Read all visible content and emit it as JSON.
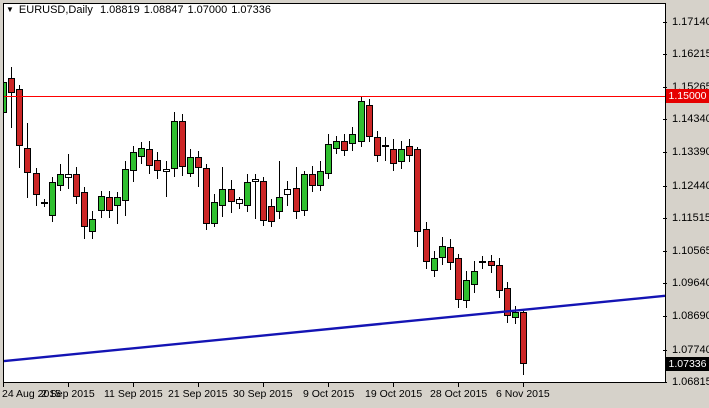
{
  "window": {
    "background_color": "#d6d2ca",
    "plot_background": "#ffffff"
  },
  "header": {
    "dropdown_icon": "▼",
    "symbol": "EURUSD,Daily",
    "open": "1.08819",
    "high": "1.08847",
    "low": "1.07000",
    "close": "1.07336"
  },
  "y_axis": {
    "labels": [
      "1.17140",
      "1.16215",
      "1.15265",
      "1.14340",
      "1.13390",
      "1.12440",
      "1.11515",
      "1.10565",
      "1.09640",
      "1.08690",
      "1.07740",
      "1.06815"
    ],
    "values": [
      1.1714,
      1.16215,
      1.15265,
      1.1434,
      1.1339,
      1.1244,
      1.11515,
      1.10565,
      1.0964,
      1.0869,
      1.0774,
      1.06815
    ],
    "hline_price_label": "1.15000",
    "current_price_label": "1.07336"
  },
  "x_axis": {
    "labels": [
      "24 Aug 2015",
      "2 Sep 2015",
      "11 Sep 2015",
      "21 Sep 2015",
      "30 Sep 2015",
      "9 Oct 2015",
      "19 Oct 2015",
      "28 Oct 2015",
      "6 Nov 2015"
    ],
    "tick_bar_indices": [
      0,
      8,
      16,
      24,
      32,
      40,
      48,
      56,
      64
    ]
  },
  "chart_data": {
    "type": "candlestick",
    "title": "EURUSD,Daily",
    "ylim": [
      1.06815,
      1.1714
    ],
    "grid": false,
    "colors": {
      "bull_fill": "#2fbf2f",
      "bear_fill": "#cc2626",
      "doji_fill": "#ffffff",
      "outline": "#000000",
      "hline": "#ff0000",
      "hline_label_bg": "#e60000",
      "current_price_label_bg": "#000000",
      "trendline": "#1414b4"
    },
    "hline": {
      "price": 1.15,
      "label": "1.15000"
    },
    "current_price": {
      "price": 1.07336,
      "label": "1.07336"
    },
    "trendline": {
      "price_left": 1.0741,
      "price_right": 1.0928
    },
    "candles": [
      {
        "o": 1.1451,
        "h": 1.1707,
        "l": 1.1422,
        "c": 1.1542,
        "color": "bull"
      },
      {
        "o": 1.1551,
        "h": 1.1585,
        "l": 1.1408,
        "c": 1.1508,
        "color": "bear"
      },
      {
        "o": 1.1522,
        "h": 1.1531,
        "l": 1.1294,
        "c": 1.1357,
        "color": "bear"
      },
      {
        "o": 1.1351,
        "h": 1.1422,
        "l": 1.1209,
        "c": 1.128,
        "color": "bear"
      },
      {
        "o": 1.128,
        "h": 1.1294,
        "l": 1.1186,
        "c": 1.1217,
        "color": "bear"
      },
      {
        "o": 1.1196,
        "h": 1.1206,
        "l": 1.1182,
        "c": 1.1191,
        "color": "doji"
      },
      {
        "o": 1.1157,
        "h": 1.1268,
        "l": 1.114,
        "c": 1.1254,
        "color": "bull"
      },
      {
        "o": 1.1243,
        "h": 1.1306,
        "l": 1.1229,
        "c": 1.1277,
        "color": "bull"
      },
      {
        "o": 1.1277,
        "h": 1.1334,
        "l": 1.1234,
        "c": 1.1266,
        "color": "doji"
      },
      {
        "o": 1.1277,
        "h": 1.1297,
        "l": 1.1192,
        "c": 1.1212,
        "color": "bear"
      },
      {
        "o": 1.1226,
        "h": 1.124,
        "l": 1.1092,
        "c": 1.1126,
        "color": "bear"
      },
      {
        "o": 1.1112,
        "h": 1.1172,
        "l": 1.1092,
        "c": 1.1149,
        "color": "bull"
      },
      {
        "o": 1.1172,
        "h": 1.1229,
        "l": 1.1152,
        "c": 1.1214,
        "color": "bull"
      },
      {
        "o": 1.1211,
        "h": 1.1229,
        "l": 1.1152,
        "c": 1.1172,
        "color": "bear"
      },
      {
        "o": 1.1186,
        "h": 1.1226,
        "l": 1.1134,
        "c": 1.1212,
        "color": "bull"
      },
      {
        "o": 1.12,
        "h": 1.1314,
        "l": 1.1157,
        "c": 1.1292,
        "color": "bull"
      },
      {
        "o": 1.1286,
        "h": 1.1357,
        "l": 1.1254,
        "c": 1.134,
        "color": "bull"
      },
      {
        "o": 1.1326,
        "h": 1.1368,
        "l": 1.1306,
        "c": 1.1351,
        "color": "bull"
      },
      {
        "o": 1.1348,
        "h": 1.1371,
        "l": 1.1277,
        "c": 1.13,
        "color": "bear"
      },
      {
        "o": 1.1317,
        "h": 1.134,
        "l": 1.1263,
        "c": 1.1286,
        "color": "bear"
      },
      {
        "o": 1.129,
        "h": 1.1314,
        "l": 1.1211,
        "c": 1.1283,
        "color": "doji"
      },
      {
        "o": 1.1291,
        "h": 1.1455,
        "l": 1.1268,
        "c": 1.1428,
        "color": "bull"
      },
      {
        "o": 1.1428,
        "h": 1.1448,
        "l": 1.1271,
        "c": 1.1297,
        "color": "bear"
      },
      {
        "o": 1.1277,
        "h": 1.1348,
        "l": 1.1268,
        "c": 1.1326,
        "color": "bull"
      },
      {
        "o": 1.1326,
        "h": 1.1342,
        "l": 1.124,
        "c": 1.1293,
        "color": "bear"
      },
      {
        "o": 1.1293,
        "h": 1.1306,
        "l": 1.1118,
        "c": 1.1135,
        "color": "bear"
      },
      {
        "o": 1.1135,
        "h": 1.122,
        "l": 1.1125,
        "c": 1.1196,
        "color": "bull"
      },
      {
        "o": 1.1185,
        "h": 1.1296,
        "l": 1.1155,
        "c": 1.1234,
        "color": "bull"
      },
      {
        "o": 1.1234,
        "h": 1.126,
        "l": 1.1166,
        "c": 1.1196,
        "color": "bear"
      },
      {
        "o": 1.1206,
        "h": 1.1212,
        "l": 1.1177,
        "c": 1.119,
        "color": "doji"
      },
      {
        "o": 1.1186,
        "h": 1.1277,
        "l": 1.1169,
        "c": 1.1254,
        "color": "bull"
      },
      {
        "o": 1.1263,
        "h": 1.1277,
        "l": 1.1149,
        "c": 1.1254,
        "color": "doji"
      },
      {
        "o": 1.1257,
        "h": 1.1269,
        "l": 1.1129,
        "c": 1.1143,
        "color": "bear"
      },
      {
        "o": 1.1186,
        "h": 1.1206,
        "l": 1.1126,
        "c": 1.114,
        "color": "bear"
      },
      {
        "o": 1.1169,
        "h": 1.1314,
        "l": 1.1149,
        "c": 1.1212,
        "color": "bull"
      },
      {
        "o": 1.1234,
        "h": 1.1257,
        "l": 1.1186,
        "c": 1.1217,
        "color": "doji"
      },
      {
        "o": 1.1237,
        "h": 1.1297,
        "l": 1.1149,
        "c": 1.1169,
        "color": "bear"
      },
      {
        "o": 1.1172,
        "h": 1.1285,
        "l": 1.1157,
        "c": 1.1277,
        "color": "bull"
      },
      {
        "o": 1.1277,
        "h": 1.13,
        "l": 1.1226,
        "c": 1.1243,
        "color": "bear"
      },
      {
        "o": 1.1243,
        "h": 1.1314,
        "l": 1.1229,
        "c": 1.1285,
        "color": "bull"
      },
      {
        "o": 1.1277,
        "h": 1.1391,
        "l": 1.1263,
        "c": 1.1362,
        "color": "bull"
      },
      {
        "o": 1.1348,
        "h": 1.1385,
        "l": 1.1334,
        "c": 1.1371,
        "color": "bull"
      },
      {
        "o": 1.1371,
        "h": 1.1391,
        "l": 1.1328,
        "c": 1.1342,
        "color": "bear"
      },
      {
        "o": 1.1362,
        "h": 1.1411,
        "l": 1.1342,
        "c": 1.1391,
        "color": "bull"
      },
      {
        "o": 1.1368,
        "h": 1.1499,
        "l": 1.1354,
        "c": 1.1485,
        "color": "bull"
      },
      {
        "o": 1.1476,
        "h": 1.1493,
        "l": 1.1368,
        "c": 1.1382,
        "color": "bear"
      },
      {
        "o": 1.1382,
        "h": 1.1399,
        "l": 1.1311,
        "c": 1.1328,
        "color": "bear"
      },
      {
        "o": 1.136,
        "h": 1.1382,
        "l": 1.1314,
        "c": 1.1354,
        "color": "doji"
      },
      {
        "o": 1.1348,
        "h": 1.1377,
        "l": 1.1286,
        "c": 1.1305,
        "color": "bear"
      },
      {
        "o": 1.1311,
        "h": 1.1371,
        "l": 1.1291,
        "c": 1.1348,
        "color": "bull"
      },
      {
        "o": 1.1357,
        "h": 1.1377,
        "l": 1.1311,
        "c": 1.1328,
        "color": "bear"
      },
      {
        "o": 1.1348,
        "h": 1.1354,
        "l": 1.1069,
        "c": 1.1112,
        "color": "bear"
      },
      {
        "o": 1.112,
        "h": 1.114,
        "l": 1.1006,
        "c": 1.1026,
        "color": "bear"
      },
      {
        "o": 1.0998,
        "h": 1.1057,
        "l": 1.0983,
        "c": 1.1035,
        "color": "bull"
      },
      {
        "o": 1.1035,
        "h": 1.1097,
        "l": 1.1015,
        "c": 1.1072,
        "color": "bull"
      },
      {
        "o": 1.1069,
        "h": 1.1092,
        "l": 1.1003,
        "c": 1.1023,
        "color": "bear"
      },
      {
        "o": 1.1035,
        "h": 1.1049,
        "l": 1.0892,
        "c": 1.0915,
        "color": "bear"
      },
      {
        "o": 1.0912,
        "h": 1.1,
        "l": 1.0892,
        "c": 1.0972,
        "color": "bull"
      },
      {
        "o": 1.0958,
        "h": 1.1029,
        "l": 1.0935,
        "c": 1.1,
        "color": "bull"
      },
      {
        "o": 1.1029,
        "h": 1.1043,
        "l": 1.1006,
        "c": 1.1023,
        "color": "doji"
      },
      {
        "o": 1.1029,
        "h": 1.1046,
        "l": 1.0992,
        "c": 1.1012,
        "color": "bear"
      },
      {
        "o": 1.1015,
        "h": 1.1035,
        "l": 1.0921,
        "c": 1.0941,
        "color": "bear"
      },
      {
        "o": 1.0949,
        "h": 1.0969,
        "l": 1.0849,
        "c": 1.0869,
        "color": "bear"
      },
      {
        "o": 1.0863,
        "h": 1.0898,
        "l": 1.0846,
        "c": 1.0881,
        "color": "bull"
      },
      {
        "o": 1.08819,
        "h": 1.08847,
        "l": 1.07,
        "c": 1.07336,
        "color": "bear"
      }
    ]
  }
}
